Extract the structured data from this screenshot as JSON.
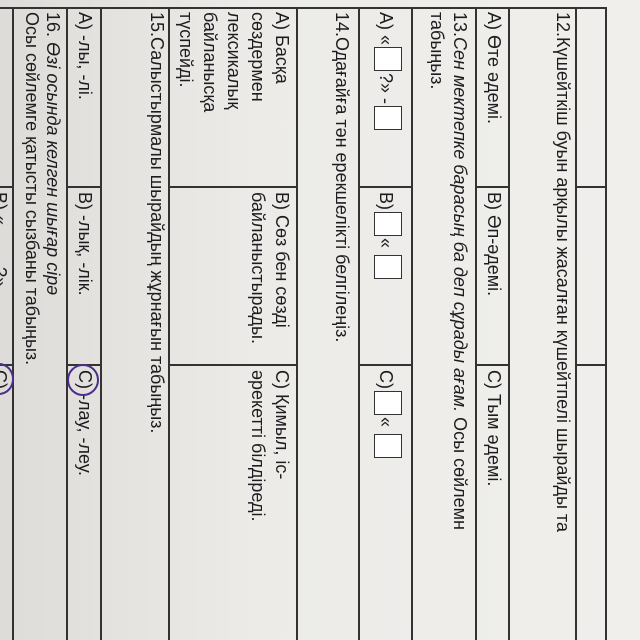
{
  "q12": {
    "question": "12.Күшейткіш буын арқылы жасалған күшейтпелі шырайды та",
    "answers": [
      "A) Өте әдемі.",
      "B) Әп-әдемі.",
      "C) Тым әдемі."
    ]
  },
  "q13": {
    "number": "13.",
    "italic": "Сен мектепке барасың ба деп сұрады ағам.",
    "rest": " Осы сөйлемн",
    "line2": "табыңыз.",
    "a_label": "A) «",
    "a_mid": "?» -",
    "b_label": "B)",
    "b_mid": "«",
    "c_label": "C)",
    "c_mid": "«"
  },
  "q14": {
    "question": "14.Одағайға тән ерекшелікті белгілеңіз.",
    "a": [
      "A) Басқа",
      "сөздермен",
      "лексикалық",
      "байланысқа",
      "түспейді."
    ],
    "b": [
      "B) Сөз бен сөзді",
      "байланыстырады."
    ],
    "c": [
      "C) Қимыл, іс-",
      "әрекетті білдіреді."
    ]
  },
  "q15": {
    "question": "15.Салыстырмалы шырайдың жұрнағын табыңыз.",
    "answers": [
      "A) -лы, -лі.",
      "B) -лық, -лік.",
      "C) -лау, -леу."
    ],
    "circled": "C"
  },
  "q16": {
    "number": "16. ",
    "italic": "Өзі осында келген шығар сірә",
    "line2": "Осы сөйлемге қатысты сызбаны табыңыз.",
    "b_label": "B) «",
    "b_mid": "?»",
    "c_label": "C)",
    "circled": "C"
  },
  "colors": {
    "paper": "#ecebe8",
    "ink": "#1d1d1f",
    "pen": "#4b2f8a"
  }
}
